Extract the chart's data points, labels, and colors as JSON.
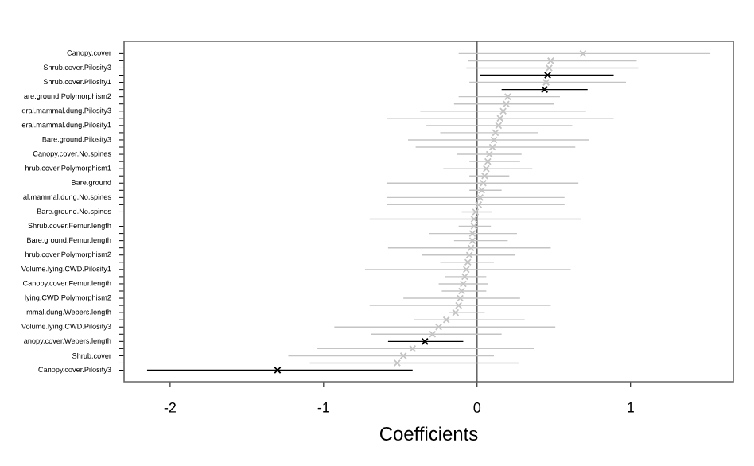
{
  "chart_data": {
    "type": "scatter",
    "orientation": "horizontal",
    "xlabel": "Coefficients",
    "marker": "cross",
    "categories": [
      "Canopy.cover",
      null,
      "Shrub.cover.Pilosity3",
      null,
      "Shrub.cover.Pilosity1",
      null,
      "are.ground.Polymorphism2",
      null,
      "eral.mammal.dung.Pilosity3",
      null,
      "eral.mammal.dung.Pilosity1",
      null,
      "Bare.ground.Pilosity3",
      null,
      "Canopy.cover.No.spines",
      null,
      "hrub.cover.Polymorphism1",
      null,
      "Bare.ground",
      null,
      "al.mammal.dung.No.spines",
      null,
      "Bare.ground.No.spines",
      null,
      "Shrub.cover.Femur.length",
      null,
      "Bare.ground.Femur.length",
      null,
      "hrub.cover.Polymorphism2",
      null,
      "Volume.lying.CWD.Pilosity1",
      null,
      "Canopy.cover.Femur.length",
      null,
      "lying.CWD.Polymorphism2",
      null,
      "mmal.dung.Webers.length",
      null,
      "Volume.lying.CWD.Pilosity3",
      null,
      "anopy.cover.Webers.length",
      null,
      "Shrub.cover",
      null,
      "Canopy.cover.Pilosity3"
    ],
    "series": [
      {
        "color": "#c4c4c4",
        "values": [
          0.69,
          0.48,
          0.47,
          null,
          0.45,
          null,
          0.2,
          0.19,
          0.17,
          0.15,
          0.14,
          0.12,
          0.11,
          0.1,
          0.08,
          0.07,
          0.06,
          0.05,
          0.04,
          0.03,
          0.02,
          0.01,
          -0.01,
          -0.02,
          -0.02,
          -0.03,
          -0.03,
          -0.04,
          -0.05,
          -0.06,
          -0.07,
          -0.08,
          -0.09,
          -0.1,
          -0.11,
          -0.12,
          -0.14,
          -0.2,
          -0.25,
          -0.29,
          null,
          -0.42,
          -0.48,
          -0.52,
          null
        ],
        "errors": [
          [
            -0.12,
            1.52
          ],
          [
            -0.06,
            1.04
          ],
          [
            -0.07,
            1.05
          ],
          null,
          [
            -0.05,
            0.97
          ],
          null,
          [
            -0.12,
            0.54
          ],
          [
            -0.15,
            0.5
          ],
          [
            -0.37,
            0.71
          ],
          [
            -0.59,
            0.89
          ],
          [
            -0.33,
            0.62
          ],
          [
            -0.24,
            0.4
          ],
          [
            -0.45,
            0.73
          ],
          [
            -0.4,
            0.64
          ],
          [
            -0.13,
            0.29
          ],
          [
            -0.05,
            0.28
          ],
          [
            -0.22,
            0.36
          ],
          [
            -0.05,
            0.21
          ],
          [
            -0.59,
            0.66
          ],
          [
            -0.05,
            0.16
          ],
          [
            -0.59,
            0.57
          ],
          [
            -0.59,
            0.57
          ],
          [
            -0.1,
            0.1
          ],
          [
            -0.7,
            0.68
          ],
          [
            -0.12,
            0.09
          ],
          [
            -0.31,
            0.26
          ],
          [
            -0.15,
            0.2
          ],
          [
            -0.58,
            0.48
          ],
          [
            -0.36,
            0.25
          ],
          [
            -0.24,
            0.11
          ],
          [
            -0.73,
            0.61
          ],
          [
            -0.21,
            0.06
          ],
          [
            -0.25,
            0.07
          ],
          [
            -0.23,
            0.06
          ],
          [
            -0.48,
            0.28
          ],
          [
            -0.7,
            0.48
          ],
          [
            -0.18,
            0.05
          ],
          [
            -0.41,
            0.31
          ],
          [
            -0.93,
            0.51
          ],
          [
            -0.69,
            0.16
          ],
          null,
          [
            -1.04,
            0.37
          ],
          [
            -1.23,
            0.11
          ],
          [
            -1.09,
            0.27
          ],
          null
        ]
      },
      {
        "color": "#000000",
        "values": [
          null,
          null,
          null,
          0.46,
          null,
          0.44,
          null,
          null,
          null,
          null,
          null,
          null,
          null,
          null,
          null,
          null,
          null,
          null,
          null,
          null,
          null,
          null,
          null,
          null,
          null,
          null,
          null,
          null,
          null,
          null,
          null,
          null,
          null,
          null,
          null,
          null,
          null,
          null,
          null,
          null,
          -0.34,
          null,
          null,
          null,
          -1.3
        ],
        "errors": [
          null,
          null,
          null,
          [
            0.02,
            0.89
          ],
          null,
          [
            0.16,
            0.72
          ],
          null,
          null,
          null,
          null,
          null,
          null,
          null,
          null,
          null,
          null,
          null,
          null,
          null,
          null,
          null,
          null,
          null,
          null,
          null,
          null,
          null,
          null,
          null,
          null,
          null,
          null,
          null,
          null,
          null,
          null,
          null,
          null,
          null,
          null,
          [
            -0.58,
            -0.09
          ],
          null,
          null,
          null,
          [
            -2.15,
            -0.42
          ]
        ]
      }
    ],
    "xlim": [
      -2.3,
      1.67
    ],
    "xticks": [
      -2,
      -1,
      0,
      1
    ],
    "ref_lines": [
      {
        "axis": "x",
        "value": 0,
        "color": "#555555"
      }
    ]
  }
}
